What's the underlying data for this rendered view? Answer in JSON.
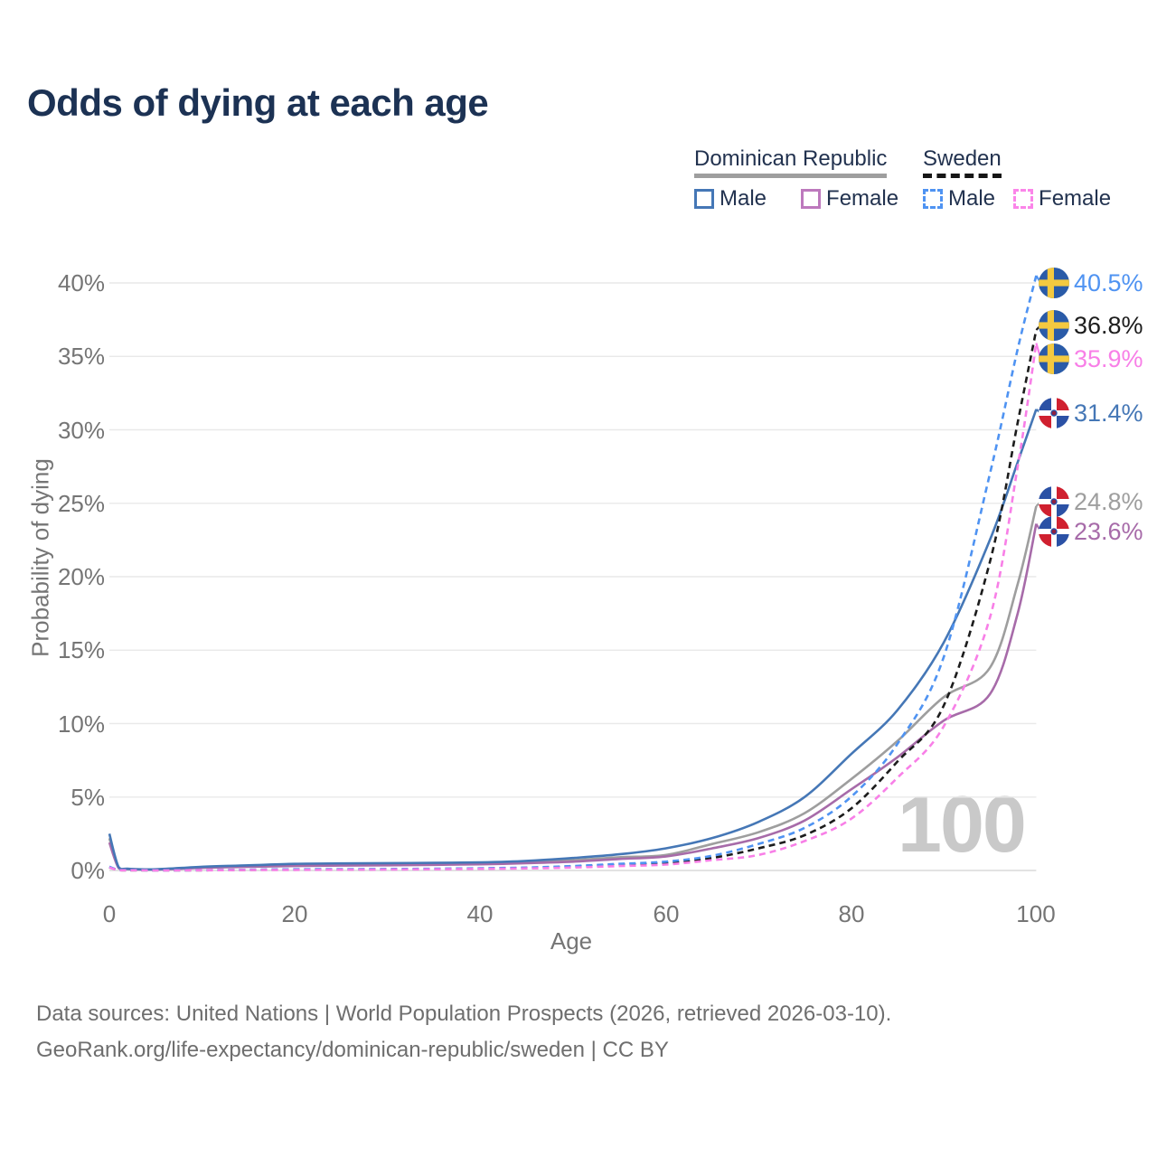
{
  "title": "Odds of dying at each age",
  "legend": {
    "groups": [
      {
        "label": "Dominican Republic",
        "line_style": "solid",
        "line_color": "#9e9e9e",
        "items": [
          {
            "label": "Male",
            "color": "#4577b6",
            "style": "solid"
          },
          {
            "label": "Female",
            "color": "#bd79bd",
            "style": "solid"
          }
        ]
      },
      {
        "label": "Sweden",
        "line_style": "dashed",
        "line_color": "#161616",
        "items": [
          {
            "label": "Male",
            "color": "#4f93f2",
            "style": "dashed"
          },
          {
            "label": "Female",
            "color": "#fb85e9",
            "style": "dashed"
          }
        ]
      }
    ]
  },
  "watermark": "100",
  "footer": {
    "line1": "Data sources: United Nations | World Population Prospects (2026, retrieved 2026-03-10).",
    "line2": "GeoRank.org/life-expectancy/dominican-republic/sweden | CC BY"
  },
  "chart_data": {
    "type": "line",
    "title": "Odds of dying at each age",
    "xlabel": "Age",
    "ylabel": "Probability of dying",
    "y_unit": "%",
    "xlim": [
      0,
      100
    ],
    "ylim": [
      0,
      42
    ],
    "grid": "horizontal",
    "legend_position": "top-right",
    "x_tick_labels": [
      "0",
      "20",
      "40",
      "60",
      "80",
      "100"
    ],
    "x_tick_values": [
      0,
      20,
      40,
      60,
      80,
      100
    ],
    "y_tick_labels": [
      "0%",
      "5%",
      "10%",
      "15%",
      "20%",
      "25%",
      "30%",
      "35%",
      "40%"
    ],
    "y_tick_values": [
      0,
      5,
      10,
      15,
      20,
      25,
      30,
      35,
      40
    ],
    "x": [
      0,
      1,
      2,
      5,
      10,
      15,
      20,
      25,
      30,
      35,
      40,
      45,
      50,
      55,
      60,
      65,
      70,
      75,
      80,
      85,
      90,
      95,
      98,
      100
    ],
    "series": [
      {
        "id": "dominican-republic-both",
        "name": "Dominican Republic",
        "country": "Dominican Republic",
        "sex": "Both",
        "color": "#9e9e9e",
        "dashed": false,
        "end_label": "24.8%",
        "values": [
          2.2,
          0.19,
          0.1,
          0.07,
          0.2,
          0.3,
          0.38,
          0.4,
          0.42,
          0.45,
          0.48,
          0.55,
          0.7,
          0.9,
          1.05,
          1.8,
          2.6,
          3.9,
          6.2,
          8.8,
          11.8,
          13.8,
          19.5,
          24.8
        ]
      },
      {
        "id": "dominican-republic-female",
        "name": "Dominican Republic Female",
        "country": "Dominican Republic",
        "sex": "Female",
        "color": "#a76ba9",
        "dashed": false,
        "end_label": "23.6%",
        "values": [
          1.9,
          0.16,
          0.09,
          0.06,
          0.18,
          0.25,
          0.3,
          0.33,
          0.35,
          0.38,
          0.42,
          0.5,
          0.6,
          0.78,
          0.95,
          1.5,
          2.2,
          3.4,
          5.5,
          7.7,
          10.2,
          12.0,
          17.5,
          23.6
        ]
      },
      {
        "id": "dominican-republic-male",
        "name": "Dominican Republic Male",
        "country": "Dominican Republic",
        "sex": "Male",
        "color": "#4577b6",
        "dashed": false,
        "end_label": "31.4%",
        "values": [
          2.5,
          0.22,
          0.12,
          0.08,
          0.25,
          0.35,
          0.45,
          0.48,
          0.5,
          0.52,
          0.55,
          0.65,
          0.85,
          1.1,
          1.5,
          2.2,
          3.3,
          5.0,
          7.9,
          10.9,
          15.5,
          22.5,
          27.8,
          31.4
        ]
      },
      {
        "id": "sweden-both",
        "name": "Sweden",
        "country": "Sweden",
        "sex": "Both",
        "color": "#1c1c1c",
        "dashed": true,
        "end_label": "36.8%",
        "values": [
          0.22,
          0.025,
          0.015,
          0.01,
          0.015,
          0.04,
          0.06,
          0.07,
          0.08,
          0.1,
          0.13,
          0.17,
          0.25,
          0.38,
          0.5,
          0.85,
          1.5,
          2.4,
          4.2,
          7.4,
          11.2,
          21.0,
          30.5,
          36.8
        ]
      },
      {
        "id": "sweden-male",
        "name": "Sweden Male",
        "country": "Sweden",
        "sex": "Male",
        "color": "#4f93f2",
        "dashed": true,
        "end_label": "40.5%",
        "values": [
          0.25,
          0.03,
          0.02,
          0.01,
          0.02,
          0.05,
          0.08,
          0.09,
          0.1,
          0.12,
          0.15,
          0.2,
          0.3,
          0.45,
          0.6,
          1.0,
          1.8,
          2.9,
          5.0,
          8.6,
          14.5,
          27.0,
          35.5,
          40.5
        ]
      },
      {
        "id": "sweden-female",
        "name": "Sweden Female",
        "country": "Sweden",
        "sex": "Female",
        "color": "#f87fe7",
        "dashed": true,
        "end_label": "35.9%",
        "values": [
          0.2,
          0.02,
          0.012,
          0.008,
          0.01,
          0.03,
          0.04,
          0.05,
          0.06,
          0.08,
          0.11,
          0.14,
          0.2,
          0.3,
          0.4,
          0.7,
          1.05,
          2.0,
          3.5,
          6.3,
          9.8,
          17.2,
          27.5,
          35.9
        ]
      }
    ]
  }
}
